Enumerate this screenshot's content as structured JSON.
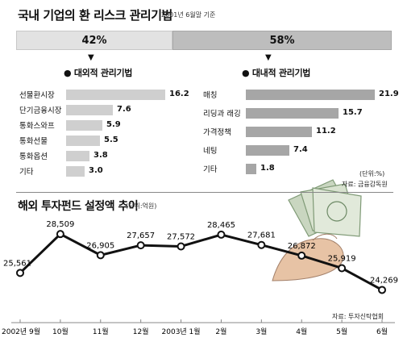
{
  "top": {
    "title": "국내 기업의 환 리스크 관리기법",
    "date_note": "2001년 6월말 기준",
    "split": {
      "left_label": "42%",
      "right_label": "58%",
      "left_share": 42,
      "right_share": 58
    },
    "unit_note": "(단위:%)",
    "source_note": "자료: 금융감독원"
  },
  "external": {
    "heading": "대외적 관리기법",
    "items": [
      {
        "label": "선물환시장",
        "value": 16.2,
        "display": "16.2"
      },
      {
        "label": "단기금융시장",
        "value": 7.6,
        "display": "7.6"
      },
      {
        "label": "통화스와프",
        "value": 5.9,
        "display": "5.9"
      },
      {
        "label": "통화선물",
        "value": 5.5,
        "display": "5.5"
      },
      {
        "label": "통화옵션",
        "value": 3.8,
        "display": "3.8"
      },
      {
        "label": "기타",
        "value": 3.0,
        "display": "3.0"
      }
    ]
  },
  "internal": {
    "heading": "대내적 관리기법",
    "items": [
      {
        "label": "매칭",
        "value": 21.9,
        "display": "21.9"
      },
      {
        "label": "리딩과 래깅",
        "value": 15.7,
        "display": "15.7"
      },
      {
        "label": "가격정책",
        "value": 11.2,
        "display": "11.2"
      },
      {
        "label": "네팅",
        "value": 7.4,
        "display": "7.4"
      },
      {
        "label": "기타",
        "value": 1.8,
        "display": "1.8"
      }
    ]
  },
  "bottom": {
    "title": "해외 투자펀드 설정액 추이",
    "unit": "(단위:억원)",
    "source_note": "자료: 투자신탁협회"
  },
  "colors": {
    "left_bar": "#cfcfcf",
    "right_bar": "#a6a6a6",
    "line": "#111111"
  },
  "chart_data": [
    {
      "type": "bar",
      "title": "대외적 관리기법",
      "categories": [
        "선물환시장",
        "단기금융시장",
        "통화스와프",
        "통화선물",
        "통화옵션",
        "기타"
      ],
      "values": [
        16.2,
        7.6,
        5.9,
        5.5,
        3.8,
        3.0
      ],
      "orientation": "horizontal"
    },
    {
      "type": "bar",
      "title": "대내적 관리기법",
      "categories": [
        "매칭",
        "리딩과 래깅",
        "가격정책",
        "네팅",
        "기타"
      ],
      "values": [
        21.9,
        15.7,
        11.2,
        7.4,
        1.8
      ],
      "orientation": "horizontal"
    },
    {
      "type": "line",
      "title": "해외 투자펀드 설정액 추이",
      "ylabel": "(단위:억원)",
      "categories": [
        "2002년 9월",
        "10월",
        "11월",
        "12월",
        "2003년 1월",
        "2월",
        "3월",
        "4월",
        "5월",
        "6월"
      ],
      "values": [
        25561,
        28509,
        26905,
        27657,
        27572,
        28465,
        27681,
        26872,
        25919,
        24269
      ],
      "labels": [
        "25,561",
        "28,509",
        "26,905",
        "27,657",
        "27,572",
        "28,465",
        "27,681",
        "26,872",
        "25,919",
        "24,269"
      ],
      "ylim": [
        23500,
        29500
      ],
      "grid": false
    }
  ]
}
